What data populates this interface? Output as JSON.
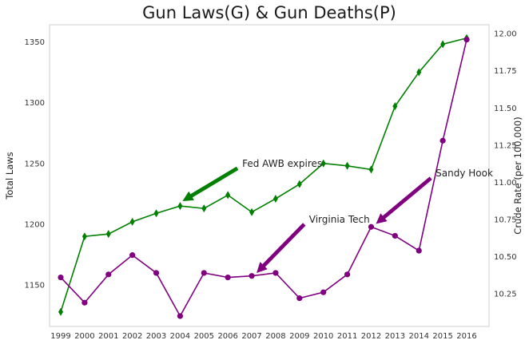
{
  "chart_data": {
    "type": "line",
    "title": "Gun Laws(G) & Gun Deaths(P)",
    "xlabel": "",
    "ylabel_left": "Total Laws",
    "ylabel_right": "Crude Rate (per 100,000)",
    "x": [
      1999,
      2000,
      2001,
      2002,
      2003,
      2004,
      2005,
      2006,
      2007,
      2008,
      2009,
      2010,
      2011,
      2012,
      2013,
      2014,
      2015,
      2016
    ],
    "ylim_left": [
      1116,
      1364
    ],
    "ylim_right": [
      10.03,
      12.06
    ],
    "yticks_left": [
      1150,
      1200,
      1250,
      1300,
      1350
    ],
    "yticks_right": [
      "10.25",
      "10.50",
      "10.75",
      "11.00",
      "11.25",
      "11.50",
      "11.75",
      "12.00"
    ],
    "grid": false,
    "series": [
      {
        "name": "",
        "axis": "left",
        "color": "#008000",
        "marker": "diamond",
        "values": [
          1128,
          1190,
          1192,
          1202,
          1209,
          1215,
          1213,
          1224,
          1210,
          1221,
          1233,
          1250,
          1248,
          1245,
          1297,
          1325,
          1348,
          1353
        ]
      },
      {
        "name": "",
        "axis": "right",
        "color": "#800080",
        "marker": "circle",
        "values": [
          10.36,
          10.19,
          10.38,
          10.51,
          10.39,
          10.1,
          10.39,
          10.36,
          10.37,
          10.39,
          10.22,
          10.26,
          10.38,
          10.7,
          10.64,
          10.54,
          11.28,
          11.96
        ]
      }
    ],
    "annotations": [
      {
        "text": "Fed AWB expires",
        "color": "#008000",
        "axis": "left",
        "text_x": 2006.6,
        "text_y": 1250,
        "arrow_x": 2004.1,
        "arrow_y": 1219
      },
      {
        "text": "Virginia Tech",
        "color": "#800080",
        "axis": "right",
        "text_x": 2009.4,
        "text_y": 10.75,
        "arrow_x": 2007.2,
        "arrow_y": 10.39
      },
      {
        "text": "Sandy Hook",
        "color": "#800080",
        "axis": "right",
        "text_x": 2014.7,
        "text_y": 11.06,
        "arrow_x": 2012.2,
        "arrow_y": 10.72
      }
    ]
  }
}
